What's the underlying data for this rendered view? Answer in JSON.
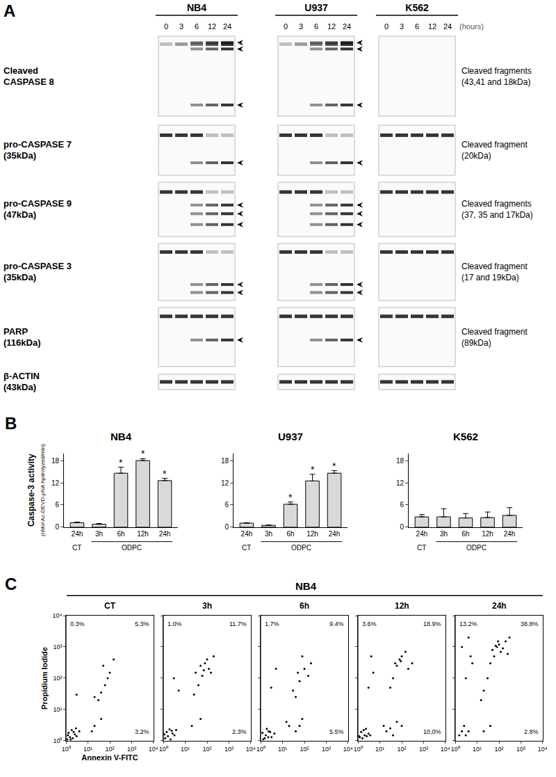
{
  "panel_labels": [
    "A",
    "B",
    "C"
  ],
  "western_blot": {
    "cell_lines": [
      "NB4",
      "U937",
      "K562"
    ],
    "times": [
      "0",
      "3",
      "6",
      "12",
      "24"
    ],
    "time_unit": "(hours)",
    "rows": [
      {
        "label": [
          "Cleaved",
          "CASPASE 8"
        ],
        "fragments": [
          "Cleaved fragments",
          "(43,41 and 18kDa)"
        ]
      },
      {
        "label": [
          "pro-CASPASE 7",
          "(35kDa)"
        ],
        "fragments": [
          "Cleaved fragment",
          "(20kDa)"
        ]
      },
      {
        "label": [
          "pro-CASPASE 9",
          "(47kDa)"
        ],
        "fragments": [
          "Cleaved fragments",
          "(37, 35 and 17kDa)"
        ]
      },
      {
        "label": [
          "pro-CASPASE 3",
          "(35kDa)"
        ],
        "fragments": [
          "Cleaved fragment",
          "(17 and 19kDa)"
        ]
      },
      {
        "label": [
          "PARP",
          "(116kDa)"
        ],
        "fragments": [
          "Cleaved fragment",
          "(89kDa)"
        ]
      },
      {
        "label": [
          "β-ACTIN",
          "(43kDa)"
        ]
      }
    ]
  },
  "panel_c_title": "NB4",
  "chart_data": [
    {
      "type": "bar",
      "panel": "B",
      "title": "NB4",
      "categories": [
        "24h",
        "3h",
        "6h",
        "12h",
        "24h"
      ],
      "group_labels": [
        {
          "text": "CT",
          "categories": [
            0
          ]
        },
        {
          "text": "ODPC",
          "categories": [
            1,
            2,
            3,
            4
          ]
        }
      ],
      "values": [
        1.2,
        0.8,
        14.6,
        18.0,
        12.6
      ],
      "errors": [
        0.2,
        0.2,
        1.6,
        0.5,
        0.6
      ],
      "annotations": [
        {
          "x": 2,
          "text": "*"
        },
        {
          "x": 3,
          "text": "*"
        },
        {
          "x": 4,
          "text": "*"
        }
      ],
      "ylabel": "Caspase-3 activity",
      "ylabel_sub": "(nMol Ac-DEVD-ρNA hydrolyzed/min)",
      "color": "#d9d9d9",
      "ylim": [
        0,
        20
      ],
      "yticks": [
        0,
        6,
        12,
        18
      ],
      "grid": false
    },
    {
      "type": "bar",
      "panel": "B",
      "title": "U937",
      "categories": [
        "24h",
        "3h",
        "6h",
        "12h",
        "24h"
      ],
      "group_labels": [
        {
          "text": "CT",
          "categories": [
            0
          ]
        },
        {
          "text": "ODPC",
          "categories": [
            1,
            2,
            3,
            4
          ]
        }
      ],
      "values": [
        1.1,
        0.5,
        6.2,
        12.5,
        14.6
      ],
      "errors": [
        0.1,
        0.1,
        0.6,
        1.8,
        0.7
      ],
      "annotations": [
        {
          "x": 2,
          "text": "*"
        },
        {
          "x": 3,
          "text": "*"
        },
        {
          "x": 4,
          "text": "*"
        }
      ],
      "color": "#d9d9d9",
      "ylim": [
        0,
        20
      ],
      "yticks": [
        0,
        6,
        12,
        18
      ],
      "grid": false
    },
    {
      "type": "bar",
      "panel": "B",
      "title": "K562",
      "categories": [
        "24h",
        "3h",
        "6h",
        "12h",
        "24h"
      ],
      "group_labels": [
        {
          "text": "CT",
          "categories": [
            0
          ]
        },
        {
          "text": "ODPC",
          "categories": [
            1,
            2,
            3,
            4
          ]
        }
      ],
      "values": [
        2.8,
        2.8,
        2.5,
        2.6,
        3.2
      ],
      "errors": [
        0.6,
        2.2,
        1.2,
        1.5,
        2.1
      ],
      "color": "#d9d9d9",
      "ylim": [
        0,
        20
      ],
      "yticks": [
        0,
        6,
        12,
        18
      ],
      "grid": false
    },
    {
      "type": "scatter",
      "panel": "C",
      "title": "CT",
      "log": true,
      "marker": "dot",
      "color": "#000000",
      "xlabel": "Annexin V-FITC",
      "ylabel": "Propidium Iodide",
      "x": [
        1.1,
        1.5,
        2,
        1.3,
        2.5,
        1.8,
        3,
        1.2,
        2.2,
        4,
        1.6,
        2.8,
        20,
        40,
        15,
        20,
        40,
        60,
        100,
        50,
        30,
        150,
        80,
        3
      ],
      "values": [
        1.1,
        1.3,
        1.2,
        1.8,
        1.6,
        2.2,
        1.4,
        1.5,
        1.9,
        2,
        1.1,
        2.5,
        3,
        5,
        2,
        25,
        35,
        60,
        150,
        250,
        20,
        400,
        100,
        30
      ],
      "gate": {
        "x": 10,
        "y": 8
      },
      "quadrant_labels": {
        "upper_left": "0.3%",
        "upper_right": "5.3%",
        "lower_right": "3.2%"
      },
      "xlim": [
        1,
        10000
      ],
      "ylim": [
        1,
        10000
      ],
      "xticks": [
        {
          "value": 1,
          "label": "10⁰"
        },
        {
          "value": 10,
          "label": "10¹"
        },
        {
          "value": 100,
          "label": "10²"
        },
        {
          "value": 1000,
          "label": "10³"
        },
        {
          "value": 10000,
          "label": "10⁴"
        }
      ],
      "yticks": [
        {
          "value": 1,
          "label": "10⁰"
        },
        {
          "value": 10,
          "label": "10¹"
        },
        {
          "value": 100,
          "label": "10²"
        },
        {
          "value": 1000,
          "label": "10³"
        },
        {
          "value": 10000,
          "label": "10⁴"
        }
      ]
    },
    {
      "type": "scatter",
      "panel": "C",
      "title": "3h",
      "log": true,
      "marker": "dot",
      "color": "#000000",
      "tick_labels": "x",
      "x": [
        1.2,
        1.6,
        2.1,
        1.4,
        2.6,
        1.9,
        3.2,
        1.1,
        2.4,
        3.8,
        30,
        50,
        80,
        120,
        60,
        40,
        25,
        100,
        200,
        70,
        150,
        20,
        50,
        5,
        3
      ],
      "values": [
        1.2,
        1.4,
        1.1,
        1.9,
        1.7,
        2.3,
        1.5,
        1.6,
        2.1,
        2.2,
        150,
        250,
        300,
        200,
        120,
        60,
        30,
        400,
        500,
        180,
        150,
        3,
        5,
        40,
        100
      ],
      "gate": {
        "x": 10,
        "y": 8
      },
      "quadrant_labels": {
        "upper_left": "1.0%",
        "upper_right": "11.7%",
        "lower_right": "2.3%"
      },
      "xlim": [
        1,
        10000
      ],
      "ylim": [
        1,
        10000
      ],
      "xticks": [
        {
          "value": 1,
          "label": "10⁰"
        },
        {
          "value": 10,
          "label": "10¹"
        },
        {
          "value": 100,
          "label": "10²"
        },
        {
          "value": 1000,
          "label": "10³"
        },
        {
          "value": 10000,
          "label": "10⁴"
        }
      ],
      "yticks": [
        {
          "value": 1,
          "label": "10⁰"
        },
        {
          "value": 10,
          "label": "10¹"
        },
        {
          "value": 100,
          "label": "10²"
        },
        {
          "value": 1000,
          "label": "10³"
        },
        {
          "value": 10000,
          "label": "10⁴"
        }
      ]
    },
    {
      "type": "scatter",
      "panel": "C",
      "title": "6h",
      "log": true,
      "marker": "dot",
      "color": "#000000",
      "tick_labels": "x",
      "x": [
        1.3,
        1.7,
        2.2,
        1.2,
        2.7,
        1.9,
        3.1,
        1.5,
        2.3,
        4.2,
        30,
        60,
        100,
        50,
        200,
        80,
        40,
        150,
        20,
        40,
        80,
        15,
        60,
        3,
        5
      ],
      "values": [
        1.1,
        1.5,
        1.3,
        1.8,
        1.9,
        2.4,
        1.3,
        1.2,
        2,
        1.7,
        40,
        80,
        200,
        150,
        300,
        500,
        25,
        120,
        3,
        2,
        5,
        4,
        3,
        50,
        200
      ],
      "gate": {
        "x": 10,
        "y": 8
      },
      "quadrant_labels": {
        "upper_left": "1.7%",
        "upper_right": "9.4%",
        "lower_right": "5.5%"
      },
      "xlim": [
        1,
        10000
      ],
      "ylim": [
        1,
        10000
      ],
      "xticks": [
        {
          "value": 1,
          "label": "10⁰"
        },
        {
          "value": 10,
          "label": "10¹"
        },
        {
          "value": 100,
          "label": "10²"
        },
        {
          "value": 1000,
          "label": "10³"
        },
        {
          "value": 10000,
          "label": "10⁴"
        }
      ],
      "yticks": [
        {
          "value": 1,
          "label": "10⁰"
        },
        {
          "value": 10,
          "label": "10¹"
        },
        {
          "value": 100,
          "label": "10²"
        },
        {
          "value": 1000,
          "label": "10³"
        },
        {
          "value": 10000,
          "label": "10⁴"
        }
      ]
    },
    {
      "type": "scatter",
      "panel": "C",
      "title": "12h",
      "log": true,
      "marker": "dot",
      "color": "#000000",
      "tick_labels": "x",
      "x": [
        1.2,
        1.6,
        2,
        1.4,
        2.5,
        1.8,
        3,
        1.1,
        2.3,
        3.6,
        20,
        40,
        15,
        60,
        30,
        100,
        50,
        80,
        100,
        60,
        200,
        40,
        30,
        150,
        300,
        90,
        3,
        5,
        4
      ],
      "values": [
        1.3,
        1.2,
        1.5,
        1.9,
        1.4,
        2.2,
        1.7,
        1.4,
        2.4,
        1.5,
        2,
        1.5,
        3,
        4,
        2.5,
        3,
        300,
        400,
        500,
        250,
        200,
        100,
        50,
        700,
        300,
        350,
        50,
        150,
        500
      ],
      "gate": {
        "x": 10,
        "y": 8
      },
      "quadrant_labels": {
        "upper_left": "3.6%",
        "upper_right": "18.9%",
        "lower_right": "10,0%"
      },
      "xlim": [
        1,
        10000
      ],
      "ylim": [
        1,
        10000
      ],
      "xticks": [
        {
          "value": 1,
          "label": "10⁰"
        },
        {
          "value": 10,
          "label": "10¹"
        },
        {
          "value": 100,
          "label": "10²"
        },
        {
          "value": 1000,
          "label": "10³"
        },
        {
          "value": 10000,
          "label": "10⁴"
        }
      ],
      "yticks": [
        {
          "value": 1,
          "label": "10⁰"
        },
        {
          "value": 10,
          "label": "10¹"
        },
        {
          "value": 100,
          "label": "10²"
        },
        {
          "value": 1000,
          "label": "10³"
        },
        {
          "value": 10000,
          "label": "10⁴"
        }
      ]
    },
    {
      "type": "scatter",
      "panel": "C",
      "title": "24h",
      "log": true,
      "marker": "dot",
      "color": "#000000",
      "tick_labels": "x",
      "x": [
        1.5,
        2,
        3,
        2.5,
        4,
        20,
        40,
        50,
        80,
        100,
        150,
        60,
        200,
        120,
        300,
        40,
        90,
        250,
        70,
        30,
        20,
        15,
        3,
        5,
        2,
        4,
        6
      ],
      "values": [
        1.5,
        2,
        1.5,
        3,
        2,
        2,
        3,
        800,
        1000,
        1200,
        900,
        500,
        1500,
        700,
        2000,
        300,
        1500,
        600,
        1100,
        100,
        40,
        20,
        100,
        500,
        1000,
        2000,
        300
      ],
      "gate": {
        "x": 10,
        "y": 8
      },
      "quadrant_labels": {
        "upper_left": "13.2%",
        "upper_right": "38.8%",
        "lower_right": "2.8%"
      },
      "xlim": [
        1,
        10000
      ],
      "ylim": [
        1,
        10000
      ],
      "xticks": [
        {
          "value": 1,
          "label": "10⁰"
        },
        {
          "value": 10,
          "label": "10¹"
        },
        {
          "value": 100,
          "label": "10²"
        },
        {
          "value": 1000,
          "label": "10³"
        },
        {
          "value": 10000,
          "label": "10⁴"
        }
      ],
      "yticks": [
        {
          "value": 1,
          "label": "10⁰"
        },
        {
          "value": 10,
          "label": "10¹"
        },
        {
          "value": 100,
          "label": "10²"
        },
        {
          "value": 1000,
          "label": "10³"
        },
        {
          "value": 10000,
          "label": "10⁴"
        }
      ]
    }
  ]
}
